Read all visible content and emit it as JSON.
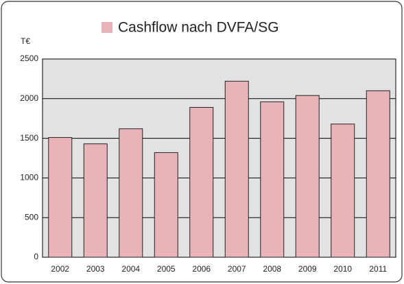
{
  "chart_data": {
    "type": "bar",
    "title": "Cashflow nach DVFA/SG",
    "y_label": "T€",
    "categories": [
      "2002",
      "2003",
      "2004",
      "2005",
      "2006",
      "2007",
      "2008",
      "2009",
      "2010",
      "2011"
    ],
    "series": [
      {
        "name": "Cashflow nach DVFA/SG",
        "color": "#e8b4b8",
        "values": [
          1510,
          1430,
          1620,
          1320,
          1890,
          2220,
          1960,
          2040,
          1680,
          2100
        ]
      }
    ],
    "ylim": [
      0,
      2500
    ],
    "yticks": [
      0,
      500,
      1000,
      1500,
      2000,
      2500
    ],
    "grid": true,
    "legend": "top"
  }
}
